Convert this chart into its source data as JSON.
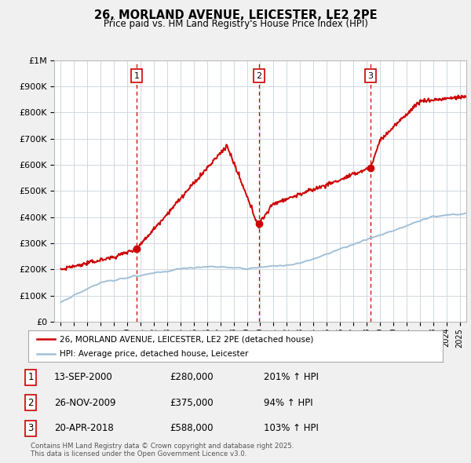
{
  "title": "26, MORLAND AVENUE, LEICESTER, LE2 2PE",
  "subtitle": "Price paid vs. HM Land Registry's House Price Index (HPI)",
  "property_label": "26, MORLAND AVENUE, LEICESTER, LE2 2PE (detached house)",
  "hpi_label": "HPI: Average price, detached house, Leicester",
  "sale_points": [
    {
      "date": "13-SEP-2000",
      "year": 2000.71,
      "price": 280000,
      "label": "1",
      "info": "201% ↑ HPI"
    },
    {
      "date": "26-NOV-2009",
      "year": 2009.9,
      "price": 375000,
      "label": "2",
      "info": "94% ↑ HPI"
    },
    {
      "date": "20-APR-2018",
      "year": 2018.3,
      "price": 588000,
      "label": "3",
      "info": "103% ↑ HPI"
    }
  ],
  "footer": "Contains HM Land Registry data © Crown copyright and database right 2025.\nThis data is licensed under the Open Government Licence v3.0.",
  "bg_color": "#f0f0f0",
  "plot_bg_color": "#ffffff",
  "red_color": "#cc0000",
  "blue_color": "#a0c0d8",
  "grid_color": "#d0d8e0",
  "vline_color": "#cc0000",
  "ylim": [
    0,
    1000000
  ],
  "xlim": [
    1994.5,
    2025.5
  ]
}
